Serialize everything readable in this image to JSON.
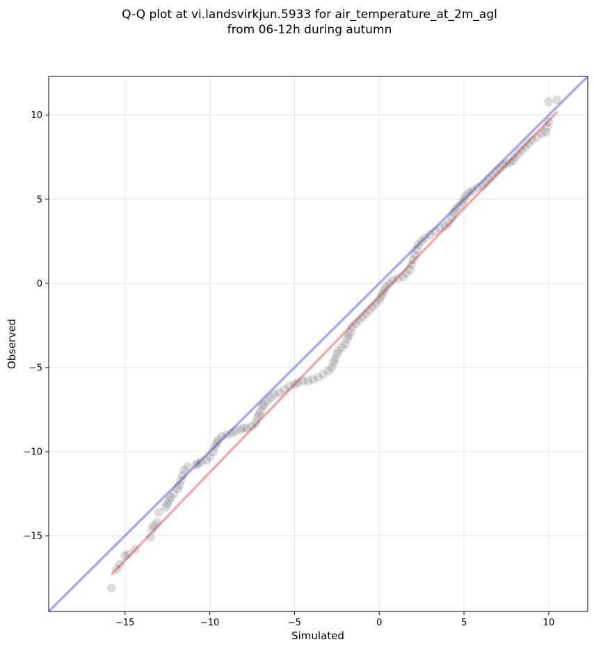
{
  "chart_data": {
    "type": "scatter",
    "title": "Q-Q plot at vi.landsvirkjun.5933 for air_temperature_at_2m_agl",
    "subtitle": "from 06-12h during autumn",
    "xlabel": "Simulated",
    "ylabel": "Observed",
    "xlim": [
      -19.5,
      12.3
    ],
    "ylim": [
      -19.5,
      12.3
    ],
    "xticks": [
      -15,
      -10,
      -5,
      0,
      5,
      10
    ],
    "yticks": [
      -15,
      -10,
      -5,
      0,
      5,
      10
    ],
    "xtick_labels": [
      "−15",
      "−10",
      "−5",
      "0",
      "5",
      "10"
    ],
    "ytick_labels": [
      "−15",
      "−10",
      "−5",
      "0",
      "5",
      "10"
    ],
    "grid": true,
    "colors": {
      "points": "#555555",
      "identity_line": "#7b7bf0",
      "fit_line": "#f07b7b",
      "grid": "#e6e6e6"
    },
    "reference_lines": [
      {
        "kind": "identity",
        "from": [
          -19.5,
          -19.5
        ],
        "to": [
          12.3,
          12.3
        ]
      },
      {
        "kind": "fit",
        "from": [
          -15.8,
          -17.3
        ],
        "to": [
          10.5,
          10.2
        ]
      }
    ],
    "points": [
      [
        -15.8,
        -18.1
      ],
      [
        -15.5,
        -17.0
      ],
      [
        -15.3,
        -16.7
      ],
      [
        -15.0,
        -16.2
      ],
      [
        -14.8,
        -16.1
      ],
      [
        -14.4,
        -15.8
      ],
      [
        -13.5,
        -15.1
      ],
      [
        -13.4,
        -14.6
      ],
      [
        -13.3,
        -14.4
      ],
      [
        -13.1,
        -14.2
      ],
      [
        -13.0,
        -13.6
      ],
      [
        -12.6,
        -13.3
      ],
      [
        -12.5,
        -13.1
      ],
      [
        -12.4,
        -12.9
      ],
      [
        -12.3,
        -12.7
      ],
      [
        -12.1,
        -12.5
      ],
      [
        -11.9,
        -12.2
      ],
      [
        -11.8,
        -12.0
      ],
      [
        -11.7,
        -11.7
      ],
      [
        -11.6,
        -11.4
      ],
      [
        -11.5,
        -11.1
      ],
      [
        -11.3,
        -10.9
      ],
      [
        -10.8,
        -10.8
      ],
      [
        -10.7,
        -10.7
      ],
      [
        -10.5,
        -10.6
      ],
      [
        -10.2,
        -10.5
      ],
      [
        -10.0,
        -10.3
      ],
      [
        -9.8,
        -10.0
      ],
      [
        -9.7,
        -9.7
      ],
      [
        -9.6,
        -9.5
      ],
      [
        -9.5,
        -9.3
      ],
      [
        -9.3,
        -9.1
      ],
      [
        -9.0,
        -9.0
      ],
      [
        -8.7,
        -8.9
      ],
      [
        -8.5,
        -8.8
      ],
      [
        -8.2,
        -8.7
      ],
      [
        -8.0,
        -8.6
      ],
      [
        -7.8,
        -8.6
      ],
      [
        -7.5,
        -8.5
      ],
      [
        -7.3,
        -8.3
      ],
      [
        -7.2,
        -8.0
      ],
      [
        -7.1,
        -7.8
      ],
      [
        -7.0,
        -7.6
      ],
      [
        -6.9,
        -7.3
      ],
      [
        -6.8,
        -7.2
      ],
      [
        -6.6,
        -7.0
      ],
      [
        -6.4,
        -6.8
      ],
      [
        -6.2,
        -6.6
      ],
      [
        -5.9,
        -6.5
      ],
      [
        -5.6,
        -6.3
      ],
      [
        -5.3,
        -6.1
      ],
      [
        -5.0,
        -6.0
      ],
      [
        -4.8,
        -5.9
      ],
      [
        -4.5,
        -5.8
      ],
      [
        -4.2,
        -5.8
      ],
      [
        -3.9,
        -5.7
      ],
      [
        -3.6,
        -5.6
      ],
      [
        -3.3,
        -5.4
      ],
      [
        -3.0,
        -5.2
      ],
      [
        -2.8,
        -5.0
      ],
      [
        -2.7,
        -4.7
      ],
      [
        -2.6,
        -4.5
      ],
      [
        -2.5,
        -4.2
      ],
      [
        -2.4,
        -4.0
      ],
      [
        -2.2,
        -3.8
      ],
      [
        -2.0,
        -3.6
      ],
      [
        -1.9,
        -3.3
      ],
      [
        -1.8,
        -3.1
      ],
      [
        -1.7,
        -2.9
      ],
      [
        -1.6,
        -2.6
      ],
      [
        -1.4,
        -2.4
      ],
      [
        -1.2,
        -2.2
      ],
      [
        -1.0,
        -2.0
      ],
      [
        -0.8,
        -1.8
      ],
      [
        -0.6,
        -1.6
      ],
      [
        -0.4,
        -1.4
      ],
      [
        -0.2,
        -1.2
      ],
      [
        0.0,
        -1.0
      ],
      [
        0.1,
        -0.8
      ],
      [
        0.2,
        -0.6
      ],
      [
        0.3,
        -0.4
      ],
      [
        0.4,
        -0.2
      ],
      [
        0.6,
        0.0
      ],
      [
        0.8,
        0.2
      ],
      [
        1.1,
        0.3
      ],
      [
        1.4,
        0.4
      ],
      [
        1.6,
        0.6
      ],
      [
        1.8,
        0.8
      ],
      [
        1.9,
        1.1
      ],
      [
        2.0,
        1.4
      ],
      [
        2.1,
        1.7
      ],
      [
        2.2,
        2.0
      ],
      [
        2.3,
        2.3
      ],
      [
        2.5,
        2.5
      ],
      [
        2.7,
        2.7
      ],
      [
        3.0,
        2.9
      ],
      [
        3.3,
        3.1
      ],
      [
        3.6,
        3.3
      ],
      [
        3.9,
        3.4
      ],
      [
        4.1,
        3.6
      ],
      [
        4.3,
        3.9
      ],
      [
        4.4,
        4.2
      ],
      [
        4.5,
        4.4
      ],
      [
        4.7,
        4.6
      ],
      [
        4.9,
        4.8
      ],
      [
        5.0,
        5.0
      ],
      [
        5.1,
        5.2
      ],
      [
        5.3,
        5.4
      ],
      [
        5.5,
        5.5
      ],
      [
        5.8,
        5.7
      ],
      [
        6.1,
        5.8
      ],
      [
        6.3,
        6.0
      ],
      [
        6.5,
        6.2
      ],
      [
        6.7,
        6.4
      ],
      [
        6.9,
        6.6
      ],
      [
        7.1,
        6.8
      ],
      [
        7.3,
        7.0
      ],
      [
        7.5,
        7.1
      ],
      [
        7.7,
        7.2
      ],
      [
        7.9,
        7.3
      ],
      [
        8.0,
        7.5
      ],
      [
        8.2,
        7.7
      ],
      [
        8.4,
        7.9
      ],
      [
        8.6,
        8.1
      ],
      [
        8.8,
        8.3
      ],
      [
        9.0,
        8.5
      ],
      [
        9.3,
        8.7
      ],
      [
        9.6,
        8.9
      ],
      [
        9.8,
        9.0
      ],
      [
        9.9,
        9.3
      ],
      [
        10.0,
        9.6
      ],
      [
        10.0,
        10.8
      ],
      [
        10.5,
        10.9
      ]
    ]
  }
}
